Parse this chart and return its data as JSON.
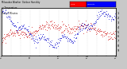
{
  "bg_color": "#c8c8c8",
  "plot_bg_color": "#ffffff",
  "blue_color": "#0000cc",
  "red_color": "#cc0000",
  "legend_red_color": "#ff0000",
  "legend_blue_color": "#0000ff",
  "ylim": [
    0,
    100
  ],
  "xlim": [
    0,
    287
  ],
  "n_points": 288,
  "seed": 17
}
